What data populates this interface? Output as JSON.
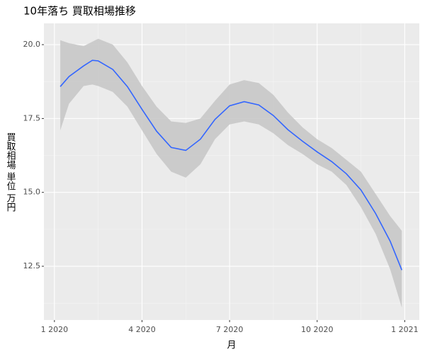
{
  "chart_data": {
    "type": "smooth",
    "title": "10年落ち 買取相場推移",
    "xlabel": "月",
    "ylabel": "買取相場 単位 万円",
    "x": [
      0.2,
      0.5,
      1,
      1.3,
      1.5,
      2,
      2.5,
      3,
      3.5,
      4,
      4.5,
      5,
      5.5,
      6,
      6.5,
      7,
      7.5,
      8,
      8.5,
      9,
      9.5,
      10,
      10.5,
      11,
      11.5,
      11.9
    ],
    "series": [
      {
        "color": "#3366ff",
        "values": [
          18.58,
          18.92,
          19.28,
          19.47,
          19.45,
          19.16,
          18.58,
          17.81,
          17.07,
          16.52,
          16.42,
          16.8,
          17.47,
          17.93,
          18.07,
          17.96,
          17.6,
          17.12,
          16.73,
          16.37,
          16.04,
          15.63,
          15.08,
          14.29,
          13.35,
          12.37
        ],
        "upper": [
          20.15,
          20.05,
          19.95,
          20.1,
          20.2,
          20.0,
          19.4,
          18.6,
          17.9,
          17.4,
          17.35,
          17.5,
          18.1,
          18.65,
          18.8,
          18.7,
          18.3,
          17.7,
          17.2,
          16.8,
          16.5,
          16.1,
          15.7,
          14.95,
          14.2,
          13.7
        ],
        "lower": [
          17.1,
          18.0,
          18.6,
          18.65,
          18.6,
          18.4,
          17.9,
          17.1,
          16.3,
          15.7,
          15.5,
          15.95,
          16.8,
          17.3,
          17.4,
          17.3,
          17.0,
          16.6,
          16.3,
          15.95,
          15.7,
          15.25,
          14.5,
          13.6,
          12.4,
          11.1
        ],
        "band_color": "#c8c8c8"
      }
    ],
    "xlim": [
      -0.36,
      12.5
    ],
    "xticks": [
      {
        "value": 0,
        "label": "1 2020"
      },
      {
        "value": 3,
        "label": "4 2020"
      },
      {
        "value": 6,
        "label": "7 2020"
      },
      {
        "value": 9,
        "label": "10 2020"
      },
      {
        "value": 12,
        "label": "1 2021"
      }
    ],
    "ylim": [
      10.68,
      20.72
    ],
    "yticks": [
      {
        "value": 12.5,
        "label": "12.5"
      },
      {
        "value": 15,
        "label": "15.0"
      },
      {
        "value": 17.5,
        "label": "17.5"
      },
      {
        "value": 20,
        "label": "20.0"
      }
    ],
    "grid": true
  }
}
